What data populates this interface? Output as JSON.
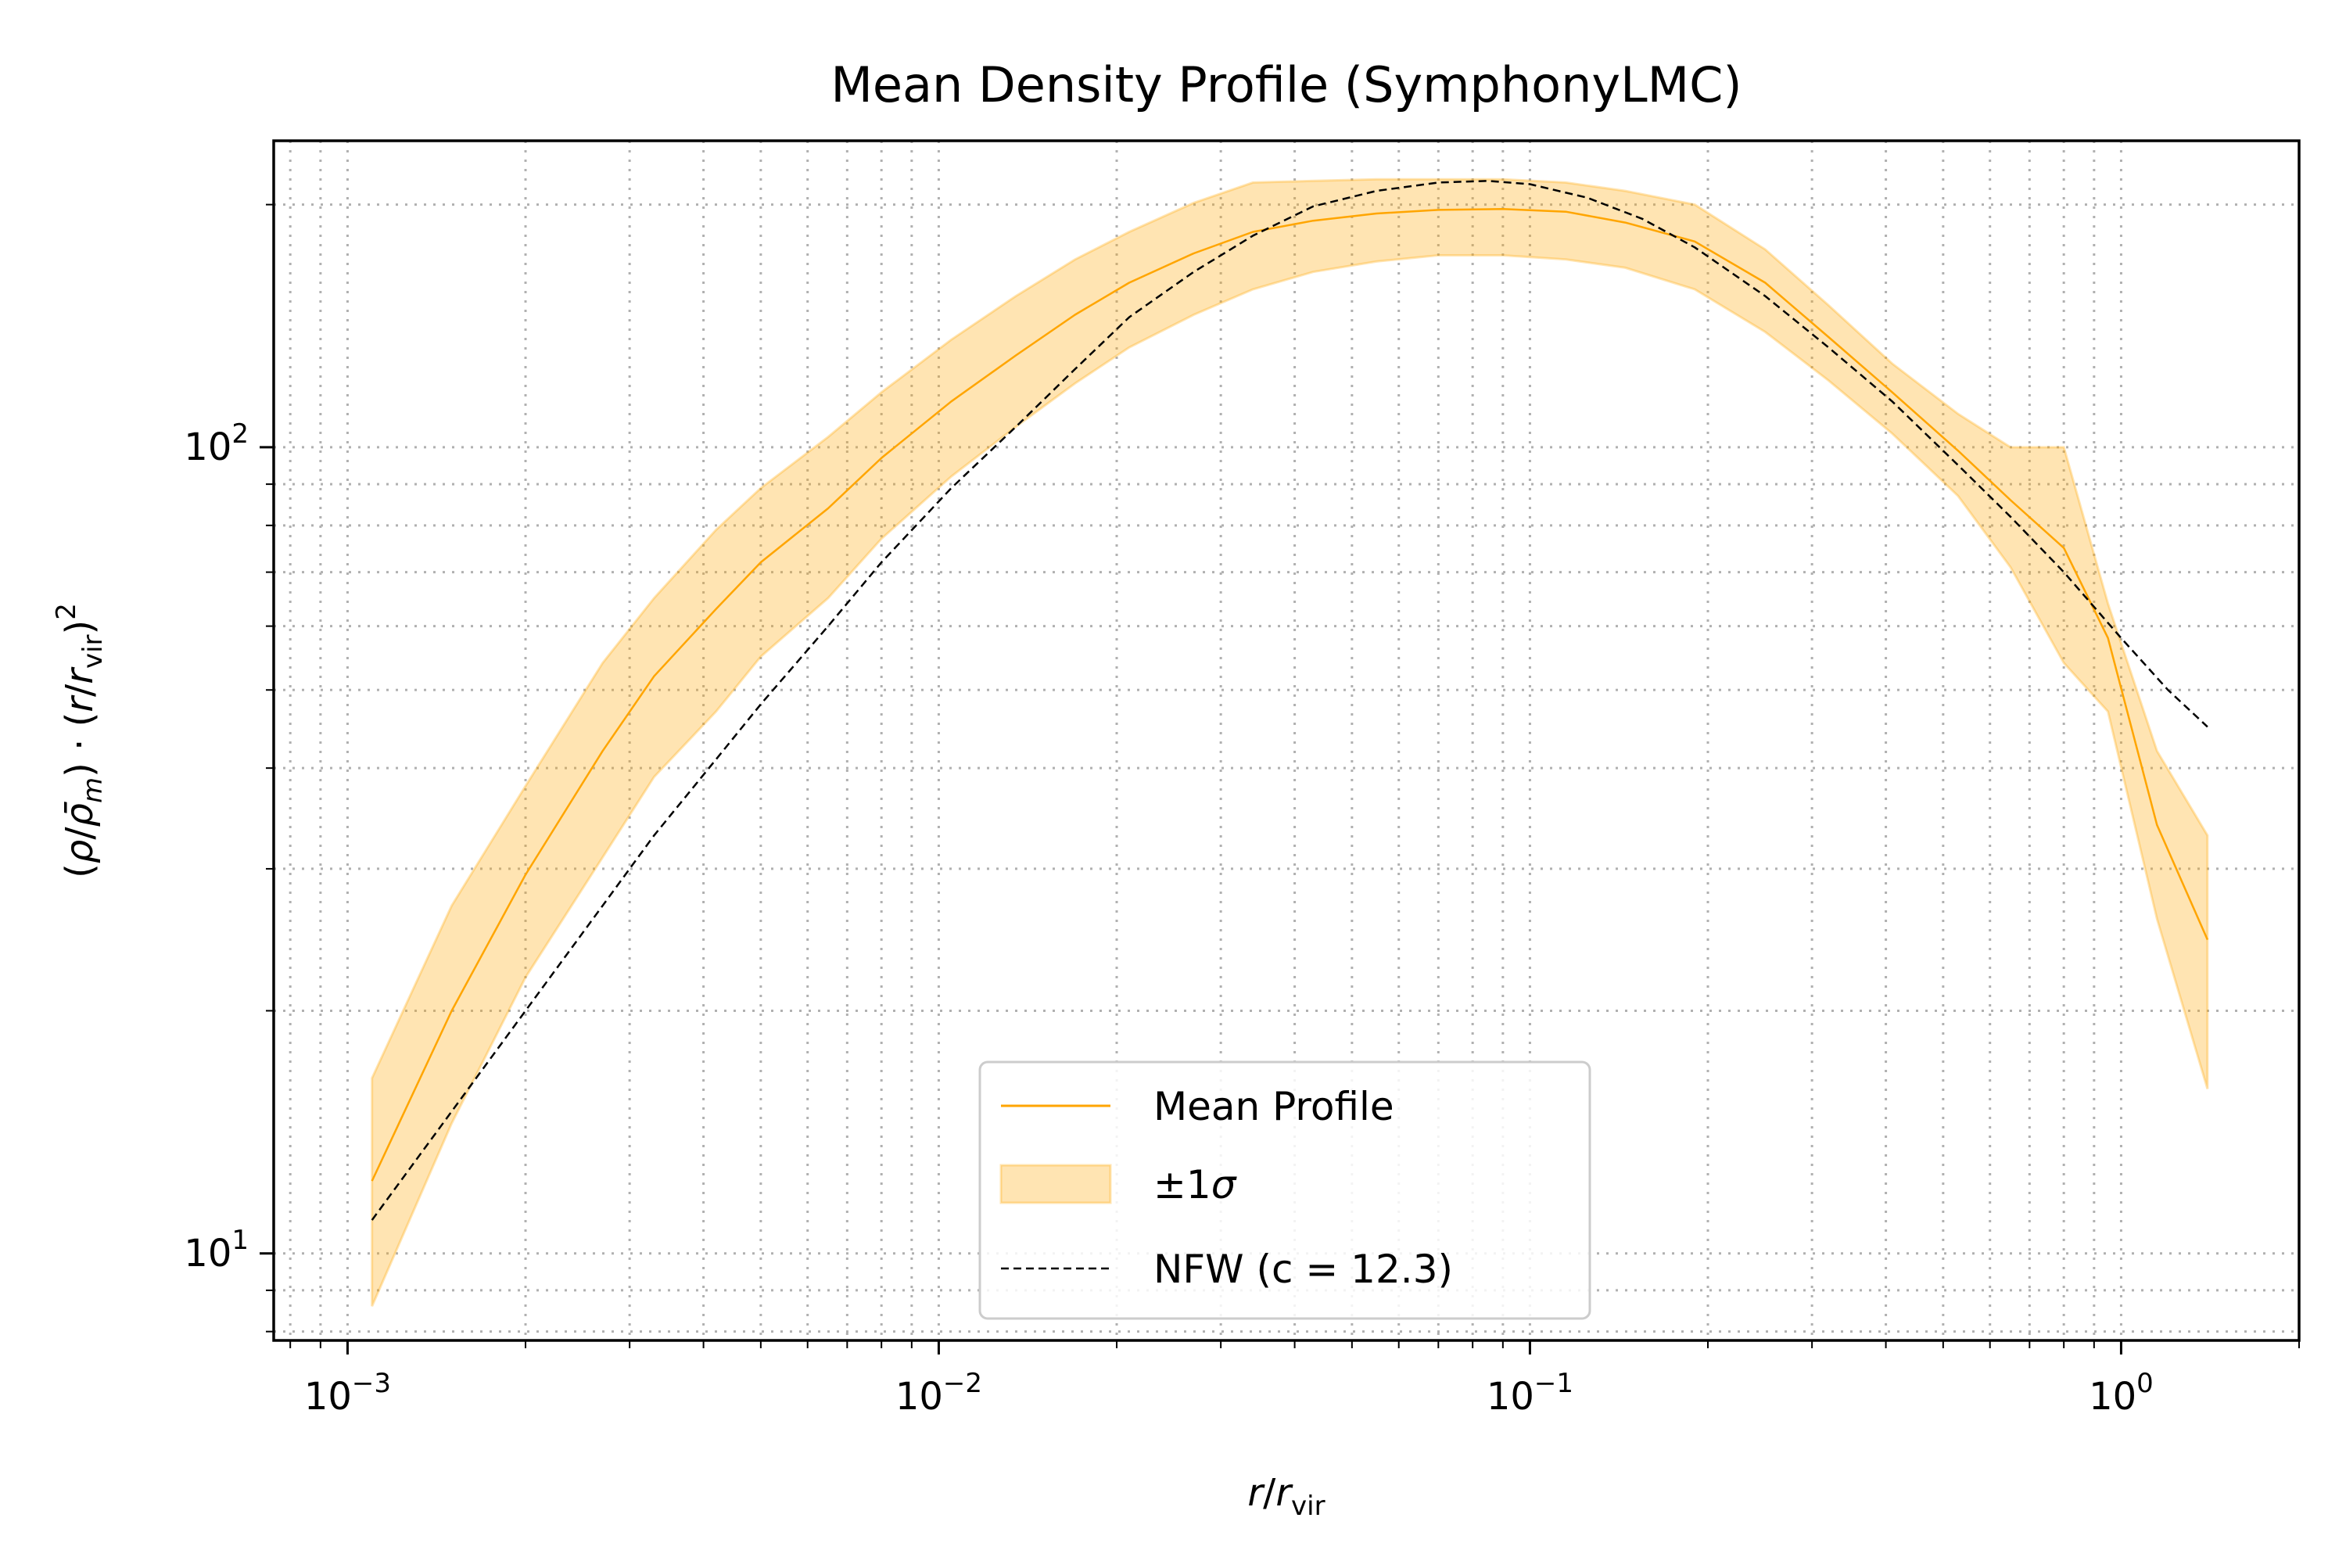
{
  "chart_data": {
    "type": "line",
    "title": "Mean Density Profile (SymphonyLMC)",
    "xlabel": "r/r_vir",
    "ylabel": "(ρ/ρ̄_m) · (r/r_vir)^2",
    "xscale": "log",
    "yscale": "log",
    "xlim": [
      0.00075,
      2.0
    ],
    "ylim": [
      7.8,
      240
    ],
    "grid": "both major and minor, dotted",
    "legend_position": "lower-center",
    "x_tick_labels": [
      {
        "value": 0.001,
        "base": "10",
        "exp": "−3"
      },
      {
        "value": 0.01,
        "base": "10",
        "exp": "−2"
      },
      {
        "value": 0.1,
        "base": "10",
        "exp": "−1"
      },
      {
        "value": 1,
        "base": "10",
        "exp": "0"
      }
    ],
    "y_tick_labels": [
      {
        "value": 10,
        "base": "10",
        "exp": "1"
      },
      {
        "value": 100,
        "base": "10",
        "exp": "2"
      }
    ],
    "colors": {
      "mean": "#ffa500",
      "band_fill": "#ffa500",
      "nfw": "#000000"
    },
    "series": [
      {
        "name": "Mean Profile",
        "style": "solid",
        "x": [
          0.0011,
          0.0015,
          0.002,
          0.0027,
          0.0033,
          0.0042,
          0.005,
          0.0065,
          0.008,
          0.0105,
          0.0135,
          0.017,
          0.021,
          0.027,
          0.034,
          0.043,
          0.055,
          0.07,
          0.09,
          0.115,
          0.145,
          0.19,
          0.25,
          0.32,
          0.41,
          0.53,
          0.65,
          0.8,
          0.95,
          1.15,
          1.4
        ],
        "y": [
          12.3,
          20.0,
          29.5,
          42.0,
          52.0,
          63.0,
          72.0,
          84.0,
          97.0,
          114.0,
          130.0,
          146.0,
          160.0,
          174.0,
          185.0,
          191.0,
          195.0,
          197.0,
          197.5,
          196.0,
          190.0,
          180.0,
          160.0,
          137.0,
          117.0,
          99.0,
          86.0,
          75.0,
          58.0,
          34.0,
          24.5
        ]
      },
      {
        "name": "±1σ",
        "style": "band",
        "x": [
          0.0011,
          0.0015,
          0.002,
          0.0027,
          0.0033,
          0.0042,
          0.005,
          0.0065,
          0.008,
          0.0105,
          0.0135,
          0.017,
          0.021,
          0.027,
          0.034,
          0.043,
          0.055,
          0.07,
          0.09,
          0.115,
          0.145,
          0.19,
          0.25,
          0.32,
          0.41,
          0.53,
          0.65,
          0.8,
          0.95,
          1.15,
          1.4
        ],
        "upper": [
          16.5,
          27.0,
          38.0,
          54.0,
          65.0,
          79.0,
          89.0,
          103.0,
          117.0,
          136.0,
          154.0,
          171.0,
          185.0,
          201.0,
          213.0,
          214.0,
          215.0,
          215.0,
          215.0,
          213.0,
          208.0,
          200.0,
          176.0,
          150.0,
          127.0,
          110.0,
          100.0,
          100.0,
          64.0,
          42.0,
          33.0
        ],
        "lower": [
          8.6,
          14.5,
          22.0,
          31.0,
          39.0,
          47.0,
          55.0,
          65.0,
          77.0,
          92.0,
          106.0,
          120.0,
          133.0,
          146.0,
          157.0,
          165.0,
          170.0,
          173.0,
          173.0,
          171.0,
          167.0,
          157.0,
          139.0,
          121.0,
          104.0,
          87.0,
          71.0,
          54.0,
          47.0,
          26.0,
          16.0
        ]
      },
      {
        "name": "NFW (c = 12.3)",
        "style": "dashed",
        "x": [
          0.0011,
          0.0015,
          0.002,
          0.0027,
          0.0033,
          0.0042,
          0.005,
          0.0065,
          0.008,
          0.0105,
          0.0135,
          0.017,
          0.021,
          0.027,
          0.034,
          0.043,
          0.055,
          0.07,
          0.085,
          0.1,
          0.125,
          0.155,
          0.19,
          0.25,
          0.32,
          0.41,
          0.53,
          0.65,
          0.8,
          1.0,
          1.2,
          1.4
        ],
        "y": [
          11.0,
          15.0,
          20.0,
          27.0,
          33.0,
          41.0,
          48.0,
          60.0,
          72.0,
          89.0,
          106.0,
          125.0,
          145.0,
          165.0,
          183.0,
          199.0,
          208.0,
          213.0,
          214.0,
          212.0,
          204.0,
          192.0,
          177.0,
          154.0,
          133.0,
          114.0,
          95.0,
          82.0,
          70.0,
          58.0,
          50.0,
          45.0
        ]
      }
    ]
  }
}
